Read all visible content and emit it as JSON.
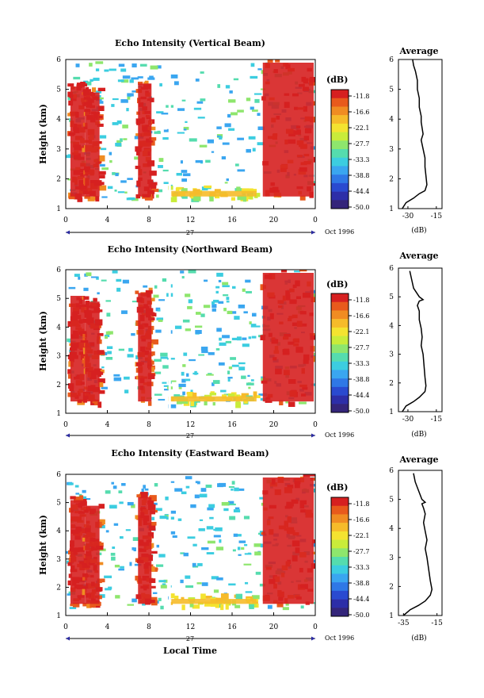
{
  "chart_data": [
    {
      "type": "heatmap",
      "title": "Echo Intensity (Vertical Beam)",
      "ylabel": "Height (km)",
      "x_ticks": [
        "0",
        "4",
        "8",
        "12",
        "16",
        "20",
        "0"
      ],
      "y_ticks": [
        "1",
        "2",
        "3",
        "4",
        "5",
        "6"
      ],
      "xlim": [
        0,
        24
      ],
      "ylim": [
        1,
        6
      ],
      "date_day": "27",
      "date_label": "Oct 1996",
      "colorbar": {
        "label": "(dB)",
        "ticks": [
          "-11.8",
          "-16.6",
          "-22.1",
          "-27.7",
          "-33.3",
          "-38.8",
          "-44.4",
          "-50.0"
        ]
      },
      "regions": [
        {
          "x": [
            0.3,
            2.0
          ],
          "y": [
            1.3,
            5.2
          ],
          "level": "high"
        },
        {
          "x": [
            1.7,
            3.4
          ],
          "y": [
            1.3,
            5.0
          ],
          "level": "high"
        },
        {
          "x": [
            6.8,
            8.4
          ],
          "y": [
            1.3,
            5.3
          ],
          "level": "high"
        },
        {
          "x": [
            18.8,
            24.0
          ],
          "y": [
            1.3,
            6.0
          ],
          "level": "high"
        },
        {
          "x": [
            10.0,
            18.5
          ],
          "y": [
            1.3,
            1.7
          ],
          "level": "mid"
        }
      ],
      "average_profile": {
        "title": "Average",
        "xlabel": "(dB)",
        "x_ticks": [
          "-30",
          "-15"
        ],
        "y_ticks": [
          "1",
          "2",
          "3",
          "4",
          "5",
          "6"
        ],
        "xlim": [
          -35,
          -12
        ],
        "ylim": [
          1,
          6
        ],
        "x": [
          -33,
          -31,
          -27,
          -24,
          -21,
          -20,
          -20.5,
          -21,
          -21,
          -22,
          -23,
          -22,
          -22.5,
          -23,
          -23,
          -24,
          -24,
          -25,
          -25,
          -26,
          -27,
          -27.5
        ],
        "y": [
          1.0,
          1.2,
          1.35,
          1.5,
          1.6,
          1.8,
          2.1,
          2.4,
          2.7,
          3.0,
          3.3,
          3.5,
          3.7,
          3.9,
          4.1,
          4.4,
          4.7,
          5.0,
          5.3,
          5.6,
          5.8,
          6.0
        ]
      }
    },
    {
      "type": "heatmap",
      "title": "Echo Intensity (Northward Beam)",
      "ylabel": "Height (km)",
      "x_ticks": [
        "0",
        "4",
        "8",
        "12",
        "16",
        "20",
        "0"
      ],
      "y_ticks": [
        "1",
        "2",
        "3",
        "4",
        "5",
        "6"
      ],
      "xlim": [
        0,
        24
      ],
      "ylim": [
        1,
        6
      ],
      "date_day": "27",
      "date_label": "Oct 1996",
      "colorbar": {
        "label": "(dB)",
        "ticks": [
          "-11.8",
          "-16.6",
          "-22.1",
          "-27.7",
          "-33.3",
          "-38.8",
          "-44.4",
          "-50.0"
        ]
      },
      "regions": [
        {
          "x": [
            0.3,
            2.0
          ],
          "y": [
            1.3,
            5.2
          ],
          "level": "high"
        },
        {
          "x": [
            1.7,
            3.4
          ],
          "y": [
            1.3,
            5.0
          ],
          "level": "high"
        },
        {
          "x": [
            6.8,
            8.4
          ],
          "y": [
            1.3,
            5.3
          ],
          "level": "high"
        },
        {
          "x": [
            18.8,
            24.0
          ],
          "y": [
            1.3,
            6.0
          ],
          "level": "high"
        },
        {
          "x": [
            10.0,
            18.5
          ],
          "y": [
            1.3,
            1.7
          ],
          "level": "mid"
        }
      ],
      "average_profile": {
        "title": "Average",
        "xlabel": "(dB)",
        "x_ticks": [
          "-30",
          "-15"
        ],
        "y_ticks": [
          "1",
          "2",
          "3",
          "4",
          "5",
          "6"
        ],
        "xlim": [
          -35,
          -12
        ],
        "ylim": [
          1,
          6
        ],
        "x": [
          -33,
          -31,
          -27,
          -24,
          -21,
          -20.5,
          -21,
          -21.5,
          -22,
          -23,
          -22.5,
          -23,
          -24,
          -24,
          -25,
          -24,
          -22,
          -24,
          -27,
          -28,
          -29
        ],
        "y": [
          1.0,
          1.2,
          1.35,
          1.5,
          1.7,
          1.9,
          2.2,
          2.6,
          3.0,
          3.3,
          3.6,
          3.9,
          4.2,
          4.5,
          4.7,
          4.85,
          4.9,
          5.0,
          5.3,
          5.6,
          5.9
        ]
      }
    },
    {
      "type": "heatmap",
      "title": "Echo Intensity (Eastward Beam)",
      "ylabel": "Height (km)",
      "xlabel": "Local Time",
      "x_ticks": [
        "0",
        "4",
        "8",
        "12",
        "16",
        "20",
        "0"
      ],
      "y_ticks": [
        "1",
        "2",
        "3",
        "4",
        "5",
        "6"
      ],
      "xlim": [
        0,
        24
      ],
      "ylim": [
        1,
        6
      ],
      "date_day": "27",
      "date_label": "Oct 1996",
      "colorbar": {
        "label": "(dB)",
        "ticks": [
          "-11.8",
          "-16.6",
          "-22.1",
          "-27.7",
          "-33.3",
          "-38.8",
          "-44.4",
          "-50.0"
        ]
      },
      "regions": [
        {
          "x": [
            0.3,
            2.0
          ],
          "y": [
            1.3,
            5.2
          ],
          "level": "high"
        },
        {
          "x": [
            1.7,
            3.4
          ],
          "y": [
            1.3,
            5.0
          ],
          "level": "high"
        },
        {
          "x": [
            6.8,
            8.4
          ],
          "y": [
            1.3,
            5.3
          ],
          "level": "high"
        },
        {
          "x": [
            18.8,
            24.0
          ],
          "y": [
            1.3,
            6.0
          ],
          "level": "high"
        },
        {
          "x": [
            10.0,
            18.5
          ],
          "y": [
            1.3,
            1.7
          ],
          "level": "mid"
        }
      ],
      "average_profile": {
        "title": "Average",
        "xlabel": "(dB)",
        "x_ticks": [
          "-35",
          "-15"
        ],
        "y_ticks": [
          "1",
          "2",
          "3",
          "4",
          "5",
          "6"
        ],
        "xlim": [
          -38,
          -12
        ],
        "ylim": [
          1,
          6
        ],
        "x": [
          -35,
          -31,
          -26,
          -22,
          -19,
          -18,
          -19,
          -20,
          -21,
          -22,
          -21,
          -22,
          -23,
          -22,
          -23,
          -24,
          -22,
          -24,
          -26,
          -28,
          -29
        ],
        "y": [
          1.0,
          1.2,
          1.35,
          1.5,
          1.7,
          1.9,
          2.2,
          2.6,
          3.0,
          3.3,
          3.6,
          3.9,
          4.2,
          4.5,
          4.7,
          4.85,
          4.9,
          5.0,
          5.3,
          5.6,
          5.9
        ]
      }
    }
  ],
  "colors": {
    "scale": [
      "#d62020",
      "#e85a1c",
      "#f08c22",
      "#f6bb2a",
      "#f4e330",
      "#c9ec3a",
      "#8ee66d",
      "#55dcae",
      "#3ccde0",
      "#3aa6f0",
      "#2f78e6",
      "#2a4ad0",
      "#2d2ea8",
      "#34257a"
    ],
    "missing": "#ffffff"
  }
}
